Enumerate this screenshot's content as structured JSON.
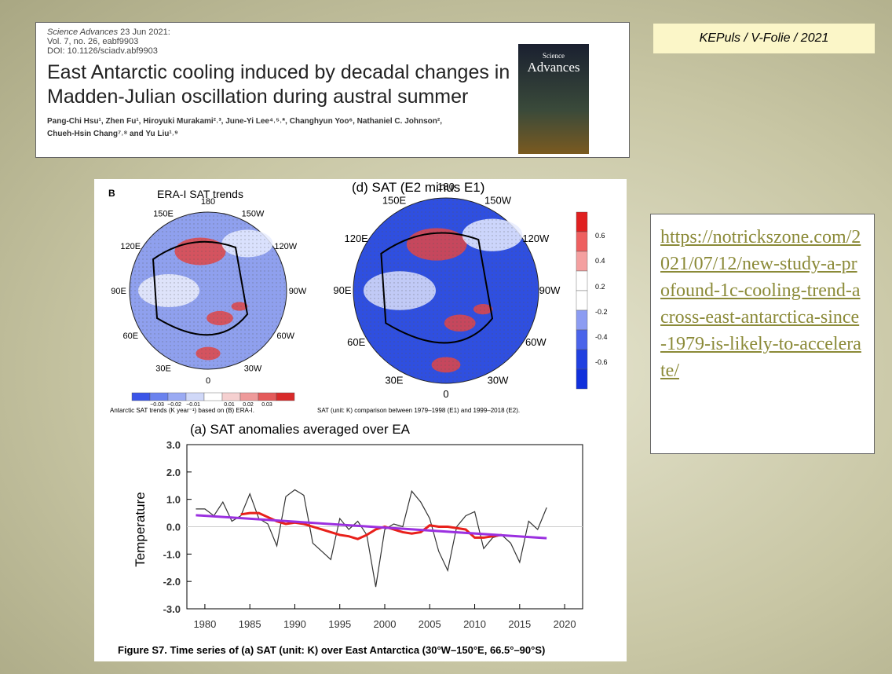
{
  "tag": "KEPuls / V-Folie / 2021",
  "link": "https://notrickszone.com/2021/07/12/new-study-a-profound-1c-cooling-trend-across-east-antarctica-since-1979-is-likely-to-accelerate/",
  "paper": {
    "journal": "Science Advances",
    "date": "23 Jun 2021:",
    "volume": "Vol. 7, no. 26, eabf9903",
    "doi": "DOI: 10.1126/sciadv.abf9903",
    "title_lines": [
      "East Antarctic cooling induced by decadal changes in",
      "Madden-Julian oscillation during austral summer"
    ],
    "author_lines": [
      "Pang-Chi Hsu¹, Zhen Fu¹, Hiroyuki Murakami²˒³, June-Yi Lee⁴˒⁵˒*, Changhyun Yoo⁶, Nathaniel C. Johnson²,",
      "Chueh-Hsin Chang⁷˒⁸ and Yu Liu¹˒⁹"
    ],
    "cover": [
      "Science",
      "Advances"
    ]
  },
  "maps": [
    {
      "panel": "B",
      "title": "ERA-I SAT trends",
      "lons": [
        "180",
        "150W",
        "120W",
        "90W",
        "60W",
        "30W",
        "0",
        "30E",
        "60E",
        "90E",
        "120E",
        "150E"
      ],
      "colorbar": [
        "−0.03",
        "−0.02",
        "−0.01",
        "0.01",
        "0.02",
        "0.03"
      ],
      "caption": "Antarctic SAT trends (K year⁻¹) based on (B) ERA-I."
    },
    {
      "title": "(d) SAT (E2 minus E1)",
      "lons": [
        "180",
        "150W",
        "120W",
        "90W",
        "60W",
        "30W",
        "0",
        "30E",
        "60E",
        "90E",
        "120E",
        "150E"
      ],
      "colorbar": [
        "0.6",
        "0.4",
        "0.2",
        "-0.2",
        "-0.4",
        "-0.6"
      ],
      "caption": "SAT (unit: K) comparison between 1979–1998 (E1) and 1999–2018 (E2)."
    }
  ],
  "chart_data": {
    "type": "line",
    "title": "(a) SAT anomalies averaged over EA",
    "y_label": "Temperature",
    "caption": "Figure S7. Time series of (a) SAT (unit: K) over East Antarctica (30°W–150°E, 66.5°–90°S)",
    "x": [
      1979,
      1980,
      1981,
      1982,
      1983,
      1984,
      1985,
      1986,
      1987,
      1988,
      1989,
      1990,
      1991,
      1992,
      1993,
      1994,
      1995,
      1996,
      1997,
      1998,
      1999,
      2000,
      2001,
      2002,
      2003,
      2004,
      2005,
      2006,
      2007,
      2008,
      2009,
      2010,
      2011,
      2012,
      2013,
      2014,
      2015,
      2016,
      2017,
      2018
    ],
    "series": [
      {
        "color": "#333333",
        "values": [
          0.65,
          0.65,
          0.4,
          0.9,
          0.2,
          0.4,
          1.2,
          0.3,
          0.1,
          -0.7,
          1.1,
          1.35,
          1.15,
          -0.6,
          -0.9,
          -1.2,
          0.3,
          -0.1,
          0.2,
          -0.3,
          -2.2,
          -0.1,
          0.1,
          0.0,
          1.3,
          0.9,
          0.3,
          -0.9,
          -1.6,
          0.0,
          0.4,
          0.55,
          -0.8,
          -0.4,
          -0.3,
          -0.6,
          -1.3,
          0.2,
          -0.1,
          0.7
        ]
      },
      {
        "color": "#e8201a",
        "values": [
          null,
          null,
          null,
          null,
          null,
          0.45,
          0.5,
          0.5,
          0.35,
          0.2,
          0.1,
          0.15,
          0.1,
          0.0,
          -0.1,
          -0.2,
          -0.3,
          -0.35,
          -0.45,
          -0.3,
          -0.1,
          0.0,
          -0.1,
          -0.2,
          -0.25,
          -0.2,
          0.05,
          0.0,
          0.0,
          -0.05,
          -0.1,
          -0.4,
          -0.4,
          -0.35,
          -0.3,
          null,
          null,
          null,
          null,
          null
        ]
      },
      {
        "color": "#9b30e0",
        "x": [
          1979,
          2018
        ],
        "values": [
          0.42,
          -0.42
        ]
      }
    ],
    "xlim": [
      1978,
      2022
    ],
    "xticks": [
      1980,
      1985,
      1990,
      1995,
      2000,
      2005,
      2010,
      2015,
      2020
    ],
    "ylim": [
      -3,
      3
    ],
    "yticks": [
      {
        "value": 3,
        "label": "3.0"
      },
      {
        "value": 2,
        "label": "2.0"
      },
      {
        "value": 1,
        "label": "1.0"
      },
      {
        "value": 0,
        "label": "0.0"
      },
      {
        "value": -1,
        "label": "-1.0"
      },
      {
        "value": -2,
        "label": "-2.0"
      },
      {
        "value": -3,
        "label": "-3.0"
      }
    ],
    "zero_line": true
  }
}
